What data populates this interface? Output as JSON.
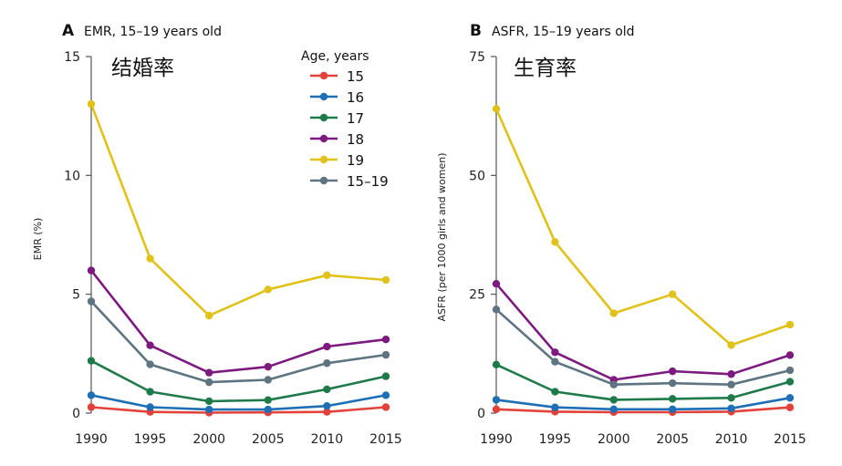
{
  "chart_data": [
    {
      "type": "line",
      "panel_letter": "A",
      "title": "EMR, 15–19 years old",
      "annotation": "结婚率",
      "xlabel": "",
      "ylabel": "EMR (%)",
      "x": [
        "1990",
        "1995",
        "2000",
        "2005",
        "2010",
        "2015"
      ],
      "ylim": [
        0,
        15
      ],
      "yticks": [
        "0",
        "5",
        "10",
        "15"
      ],
      "legend_title": "Age, years",
      "legend_position": "top-right",
      "series": [
        {
          "name": "15",
          "color": "#e2423a",
          "values": [
            0.25,
            0.05,
            0.02,
            0.03,
            0.05,
            0.25
          ]
        },
        {
          "name": "16",
          "color": "#1f6fb4",
          "values": [
            0.75,
            0.25,
            0.15,
            0.15,
            0.3,
            0.75
          ]
        },
        {
          "name": "17",
          "color": "#1f7a4a",
          "values": [
            2.2,
            0.9,
            0.5,
            0.55,
            1.0,
            1.55
          ]
        },
        {
          "name": "18",
          "color": "#7d1a7f",
          "values": [
            6.0,
            2.85,
            1.7,
            1.95,
            2.8,
            3.1
          ]
        },
        {
          "name": "19",
          "color": "#e0c21a",
          "values": [
            13.0,
            6.5,
            4.1,
            5.2,
            5.8,
            5.6
          ]
        },
        {
          "name": "15–19",
          "color": "#5e7480",
          "values": [
            4.7,
            2.05,
            1.3,
            1.4,
            2.1,
            2.45
          ]
        }
      ]
    },
    {
      "type": "line",
      "panel_letter": "B",
      "title": "ASFR, 15–19 years old",
      "annotation": "生育率",
      "xlabel": "",
      "ylabel": "ASFR (per 1000 girls and women)",
      "x": [
        "1990",
        "1995",
        "2000",
        "2005",
        "2010",
        "2015"
      ],
      "ylim": [
        0,
        75
      ],
      "yticks": [
        "0",
        "25",
        "50",
        "75"
      ],
      "series": [
        {
          "name": "15",
          "color": "#e2423a",
          "values": [
            0.8,
            0.3,
            0.2,
            0.2,
            0.3,
            1.2
          ]
        },
        {
          "name": "16",
          "color": "#1f6fb4",
          "values": [
            2.8,
            1.2,
            0.8,
            0.8,
            1.0,
            3.2
          ]
        },
        {
          "name": "17",
          "color": "#1f7a4a",
          "values": [
            10.2,
            4.5,
            2.8,
            3.0,
            3.2,
            6.6
          ]
        },
        {
          "name": "18",
          "color": "#7d1a7f",
          "values": [
            27.2,
            12.8,
            7.0,
            8.8,
            8.2,
            12.2
          ]
        },
        {
          "name": "19",
          "color": "#e0c21a",
          "values": [
            64.0,
            36.0,
            21.0,
            25.0,
            14.3,
            18.6
          ]
        },
        {
          "name": "15–19",
          "color": "#5e7480",
          "values": [
            21.8,
            10.8,
            6.0,
            6.3,
            6.0,
            9.0
          ]
        }
      ]
    }
  ]
}
